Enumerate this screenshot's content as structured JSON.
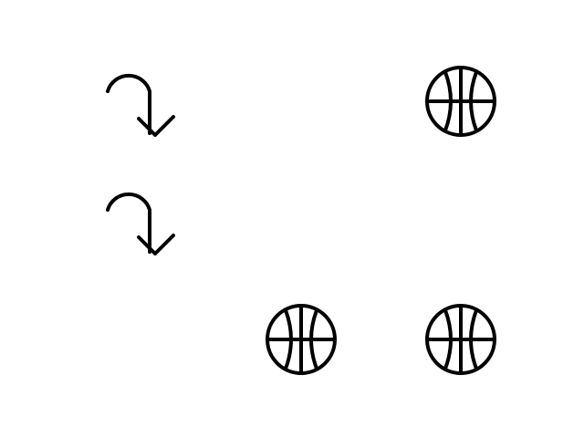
{
  "grid": {
    "rows": 3,
    "cols": 3,
    "cells": [
      [
        "redo-arrow-icon",
        null,
        "basketball-icon"
      ],
      [
        "redo-arrow-icon",
        null,
        null
      ],
      [
        null,
        "basketball-icon",
        "basketball-icon"
      ]
    ]
  },
  "icon_color": "#000000",
  "background_color": "#ffffff"
}
